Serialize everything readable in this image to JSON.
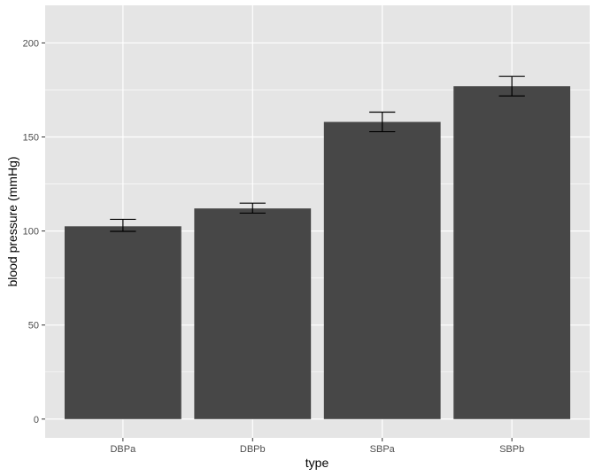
{
  "chart_data": {
    "type": "bar",
    "xlabel": "type",
    "ylabel": "blood pressure (mmHg)",
    "categories": [
      "DBPa",
      "DBPb",
      "SBPa",
      "SBPb"
    ],
    "values": [
      102.5,
      112,
      158,
      177
    ],
    "error_bars": [
      {
        "low": 99.8,
        "high": 106.2
      },
      {
        "low": 109.5,
        "high": 114.8
      },
      {
        "low": 152.8,
        "high": 163.2
      },
      {
        "low": 171.8,
        "high": 182.2
      }
    ],
    "ylim": [
      -10,
      220
    ],
    "yticks": [
      0,
      50,
      100,
      150,
      200
    ],
    "ytick_labels": [
      "0",
      "50",
      "100",
      "150",
      "200"
    ],
    "grid": true,
    "colors": {
      "panel_background": "#e5e5e5",
      "grid_line": "#ffffff",
      "bar_fill": "#474747",
      "error_bar": "#000000",
      "tick_text": "#4d4d4d",
      "axis_title": "#000000"
    }
  }
}
